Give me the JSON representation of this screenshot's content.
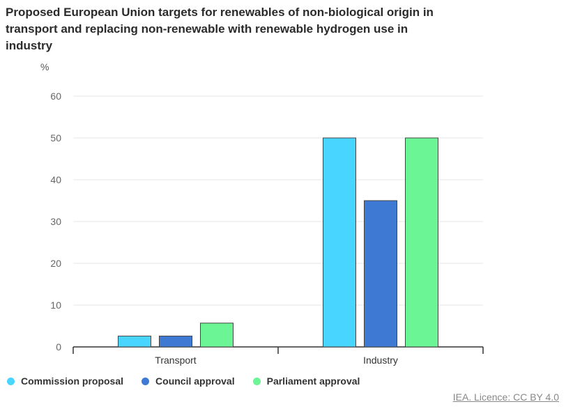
{
  "chart_data": {
    "type": "bar",
    "title": "Proposed European Union targets for renewables of non-biological origin in transport and replacing non-renewable with renewable hydrogen use in industry",
    "ylabel": "%",
    "xlabel": "",
    "ylim": [
      0,
      60
    ],
    "yticks": [
      "0",
      "10",
      "20",
      "30",
      "40",
      "50",
      "60"
    ],
    "categories": [
      "Transport",
      "Industry"
    ],
    "series": [
      {
        "name": "Commission proposal",
        "color": "#48d5ff",
        "values": [
          2.6,
          50
        ]
      },
      {
        "name": "Council approval",
        "color": "#3e7ad3",
        "values": [
          2.6,
          35
        ]
      },
      {
        "name": "Parliament approval",
        "color": "#6bf595",
        "values": [
          5.7,
          50
        ]
      }
    ],
    "grid": true,
    "legend": "bottom-left"
  },
  "credit": "IEA. Licence: CC BY 4.0"
}
